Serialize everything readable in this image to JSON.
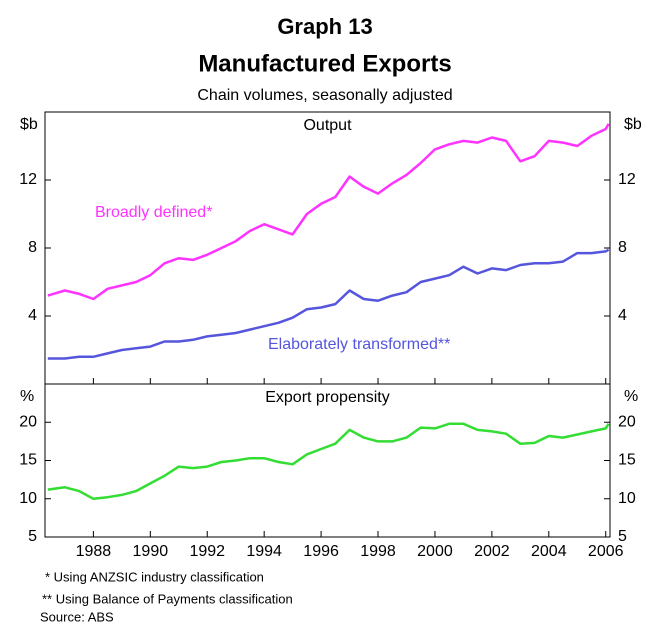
{
  "header": {
    "title": "Graph 13",
    "heading": "Manufactured Exports",
    "subtitle": "Chain volumes, seasonally adjusted"
  },
  "footnotes": [
    "*  Using ANZSIC industry classification",
    "** Using Balance of Payments classification",
    "Source: ABS"
  ],
  "chart_data": [
    {
      "type": "line",
      "title": "Output",
      "y_label": "$b",
      "x": [
        1986.4,
        1987,
        1987.5,
        1988,
        1988.5,
        1989,
        1989.5,
        1990,
        1990.5,
        1991,
        1991.5,
        1992,
        1992.5,
        1993,
        1993.5,
        1994,
        1994.5,
        1995,
        1995.5,
        1996,
        1996.5,
        1997,
        1997.5,
        1998,
        1998.5,
        1999,
        1999.5,
        2000,
        2000.5,
        2001,
        2001.5,
        2002,
        2002.5,
        2003,
        2003.5,
        2004,
        2004.5,
        2005,
        2005.5,
        2006,
        2006.1
      ],
      "xlim": [
        1986.3,
        2006.15
      ],
      "ylim": [
        0,
        16
      ],
      "yticks": [
        4,
        8,
        12
      ],
      "series": [
        {
          "name": "Broadly defined*",
          "color": "#ff33ff",
          "values": [
            5.2,
            5.5,
            5.3,
            5.0,
            5.6,
            5.8,
            6.0,
            6.4,
            7.1,
            7.4,
            7.3,
            7.6,
            8.0,
            8.4,
            9.0,
            9.4,
            9.1,
            8.8,
            10.0,
            10.6,
            11.0,
            12.2,
            11.6,
            11.2,
            11.8,
            12.3,
            13.0,
            13.8,
            14.1,
            14.3,
            14.2,
            14.5,
            14.3,
            13.1,
            13.4,
            14.3,
            14.2,
            14.0,
            14.6,
            15.0,
            15.3
          ]
        },
        {
          "name": "Elaborately transformed**",
          "color": "#5555dd",
          "values": [
            1.5,
            1.5,
            1.6,
            1.6,
            1.8,
            2.0,
            2.1,
            2.2,
            2.5,
            2.5,
            2.6,
            2.8,
            2.9,
            3.0,
            3.2,
            3.4,
            3.6,
            3.9,
            4.4,
            4.5,
            4.7,
            5.5,
            5.0,
            4.9,
            5.2,
            5.4,
            6.0,
            6.2,
            6.4,
            6.9,
            6.5,
            6.8,
            6.7,
            7.0,
            7.1,
            7.1,
            7.2,
            7.7,
            7.7,
            7.8,
            7.9
          ]
        }
      ]
    },
    {
      "type": "line",
      "title": "Export propensity",
      "y_label": "%",
      "x": [
        1986.4,
        1987,
        1987.5,
        1988,
        1988.5,
        1989,
        1989.5,
        1990,
        1990.5,
        1991,
        1991.5,
        1992,
        1992.5,
        1993,
        1993.5,
        1994,
        1994.5,
        1995,
        1995.5,
        1996,
        1996.5,
        1997,
        1997.5,
        1998,
        1998.5,
        1999,
        1999.5,
        2000,
        2000.5,
        2001,
        2001.5,
        2002,
        2002.5,
        2003,
        2003.5,
        2004,
        2004.5,
        2005,
        2005.5,
        2006,
        2006.1
      ],
      "xlim": [
        1986.3,
        2006.15
      ],
      "xticks": [
        1988,
        1990,
        1992,
        1994,
        1996,
        1998,
        2000,
        2002,
        2004,
        2006
      ],
      "ylim": [
        5,
        25
      ],
      "yticks": [
        5,
        10,
        15,
        20
      ],
      "series": [
        {
          "color": "#33dd33",
          "values": [
            11.2,
            11.5,
            11.0,
            10.0,
            10.2,
            10.5,
            11.0,
            12.0,
            13.0,
            14.2,
            14.0,
            14.2,
            14.8,
            15.0,
            15.3,
            15.3,
            14.8,
            14.5,
            15.8,
            16.5,
            17.2,
            19.0,
            18.0,
            17.5,
            17.5,
            18.0,
            19.3,
            19.2,
            19.8,
            19.8,
            19.0,
            18.8,
            18.5,
            17.2,
            17.3,
            18.2,
            18.0,
            18.4,
            18.8,
            19.2,
            19.8
          ]
        }
      ]
    }
  ]
}
